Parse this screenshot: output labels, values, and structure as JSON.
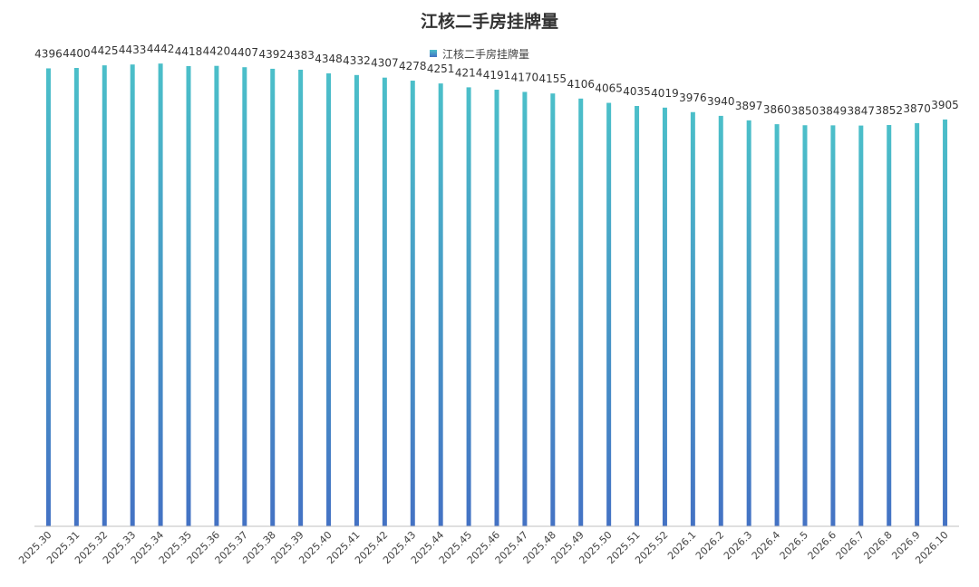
{
  "chart_data": {
    "type": "bar",
    "title": "江核二手房挂牌量",
    "xlabel": "",
    "ylabel": "",
    "ylim": [
      0,
      4600
    ],
    "grid": false,
    "legend_position": "top-center",
    "categories": [
      "2025.30",
      "2025.31",
      "2025.32",
      "2025.33",
      "2025.34",
      "2025.35",
      "2025.36",
      "2025.37",
      "2025.38",
      "2025.39",
      "2025.40",
      "2025.41",
      "2025.42",
      "2025.43",
      "2025.44",
      "2025.45",
      "2025.46",
      "2025.47",
      "2025.48",
      "2025.49",
      "2025.50",
      "2025.51",
      "2025.52",
      "2026.1",
      "2026.2",
      "2026.3",
      "2026.4",
      "2026.5",
      "2026.6",
      "2026.7",
      "2026.8",
      "2026.9",
      "2026.10"
    ],
    "series": [
      {
        "name": "江核二手房挂牌量",
        "values": [
          4396,
          4400,
          4425,
          4433,
          4442,
          4418,
          4420,
          4407,
          4392,
          4383,
          4348,
          4332,
          4307,
          4278,
          4251,
          4214,
          4191,
          4170,
          4155,
          4106,
          4065,
          4035,
          4019,
          3976,
          3940,
          3897,
          3860,
          3850,
          3849,
          3847,
          3852,
          3870,
          3905
        ]
      }
    ],
    "colors": {
      "bar_top": "#4BBFC9",
      "bar_bottom": "#4472C4",
      "axis": "#BFBFBF"
    }
  }
}
